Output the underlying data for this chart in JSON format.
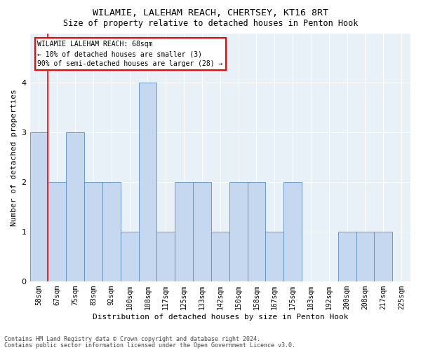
{
  "title1": "WILAMIE, LALEHAM REACH, CHERTSEY, KT16 8RT",
  "title2": "Size of property relative to detached houses in Penton Hook",
  "xlabel": "Distribution of detached houses by size in Penton Hook",
  "ylabel": "Number of detached properties",
  "categories": [
    "58sqm",
    "67sqm",
    "75sqm",
    "83sqm",
    "92sqm",
    "100sqm",
    "108sqm",
    "117sqm",
    "125sqm",
    "133sqm",
    "142sqm",
    "150sqm",
    "158sqm",
    "167sqm",
    "175sqm",
    "183sqm",
    "192sqm",
    "200sqm",
    "208sqm",
    "217sqm",
    "225sqm"
  ],
  "values": [
    3,
    2,
    3,
    2,
    2,
    1,
    4,
    1,
    2,
    2,
    1,
    2,
    2,
    1,
    2,
    0,
    0,
    1,
    1,
    1,
    0
  ],
  "bar_color": "#c5d8f0",
  "bar_edge_color": "#5a8fc2",
  "red_line_x": 0.575,
  "annotation_title": "WILAMIE LALEHAM REACH: 68sqm",
  "annotation_line1": "← 10% of detached houses are smaller (3)",
  "annotation_line2": "90% of semi-detached houses are larger (28) →",
  "footer1": "Contains HM Land Registry data © Crown copyright and database right 2024.",
  "footer2": "Contains public sector information licensed under the Open Government Licence v3.0.",
  "ylim": [
    0,
    5
  ],
  "yticks": [
    0,
    1,
    2,
    3,
    4,
    5
  ],
  "bg_color": "#e8f0f8",
  "title1_fontsize": 9.5,
  "title2_fontsize": 8.5,
  "xlabel_fontsize": 8,
  "ylabel_fontsize": 8,
  "tick_fontsize": 7,
  "footer_fontsize": 6,
  "ann_fontsize": 7
}
